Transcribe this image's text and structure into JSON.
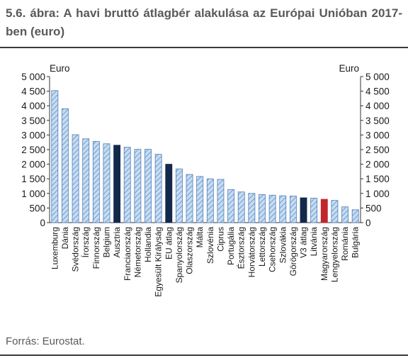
{
  "figure": {
    "title": "5.6. ábra: A havi bruttó átlagbér alakulása az Európai Unióban 2017-ben (euro)",
    "source": "Forrás: Eurostat."
  },
  "chart_data": {
    "type": "bar",
    "title": "",
    "xlabel": "",
    "ylabel": "Euro",
    "ylabel_right": "Euro",
    "ylim": [
      0,
      5000
    ],
    "yticks": [
      0,
      500,
      1000,
      1500,
      2000,
      2500,
      3000,
      3500,
      4000,
      4500,
      5000
    ],
    "ytick_labels": [
      "0",
      "500",
      "1 000",
      "1 500",
      "2 000",
      "2 500",
      "3 000",
      "3 500",
      "4 000",
      "4 500",
      "5 000"
    ],
    "grid": false,
    "legend": "none",
    "categories": [
      "Luxemburg",
      "Dánia",
      "Svédország",
      "Írország",
      "Finnország",
      "Belgium",
      "Ausztria",
      "Franciaország",
      "Németország",
      "Hollandia",
      "Egyesült Királyság",
      "EU átlag",
      "Spanyolország",
      "Olaszország",
      "Málta",
      "Szlovénia",
      "Ciprus",
      "Portugália",
      "Észtország",
      "Horvátország",
      "Lettország",
      "Csehország",
      "Szlovákia",
      "Görögország",
      "V3 átlag",
      "Litvánia",
      "Magyarország",
      "Lengyelország",
      "Románia",
      "Bulgária"
    ],
    "values": [
      4520,
      3900,
      3010,
      2870,
      2780,
      2700,
      2650,
      2580,
      2510,
      2510,
      2340,
      2000,
      1840,
      1650,
      1580,
      1500,
      1480,
      1130,
      1050,
      1000,
      960,
      940,
      920,
      910,
      850,
      840,
      800,
      760,
      540,
      440
    ],
    "bar_styles": [
      "hatch",
      "hatch",
      "hatch",
      "hatch",
      "hatch",
      "hatch",
      "dark",
      "hatch",
      "hatch",
      "hatch",
      "hatch",
      "dark",
      "hatch",
      "hatch",
      "hatch",
      "hatch",
      "hatch",
      "hatch",
      "hatch",
      "hatch",
      "hatch",
      "hatch",
      "hatch",
      "hatch",
      "dark",
      "hatch",
      "red",
      "hatch",
      "hatch",
      "hatch"
    ],
    "colors": {
      "hatch_fill": "#c6dcf2",
      "hatch_stroke": "#4f7fb5",
      "hatch_line": "#5b8cc7",
      "dark": "#13294b",
      "red": "#c0272d",
      "axis": "#333333"
    }
  }
}
